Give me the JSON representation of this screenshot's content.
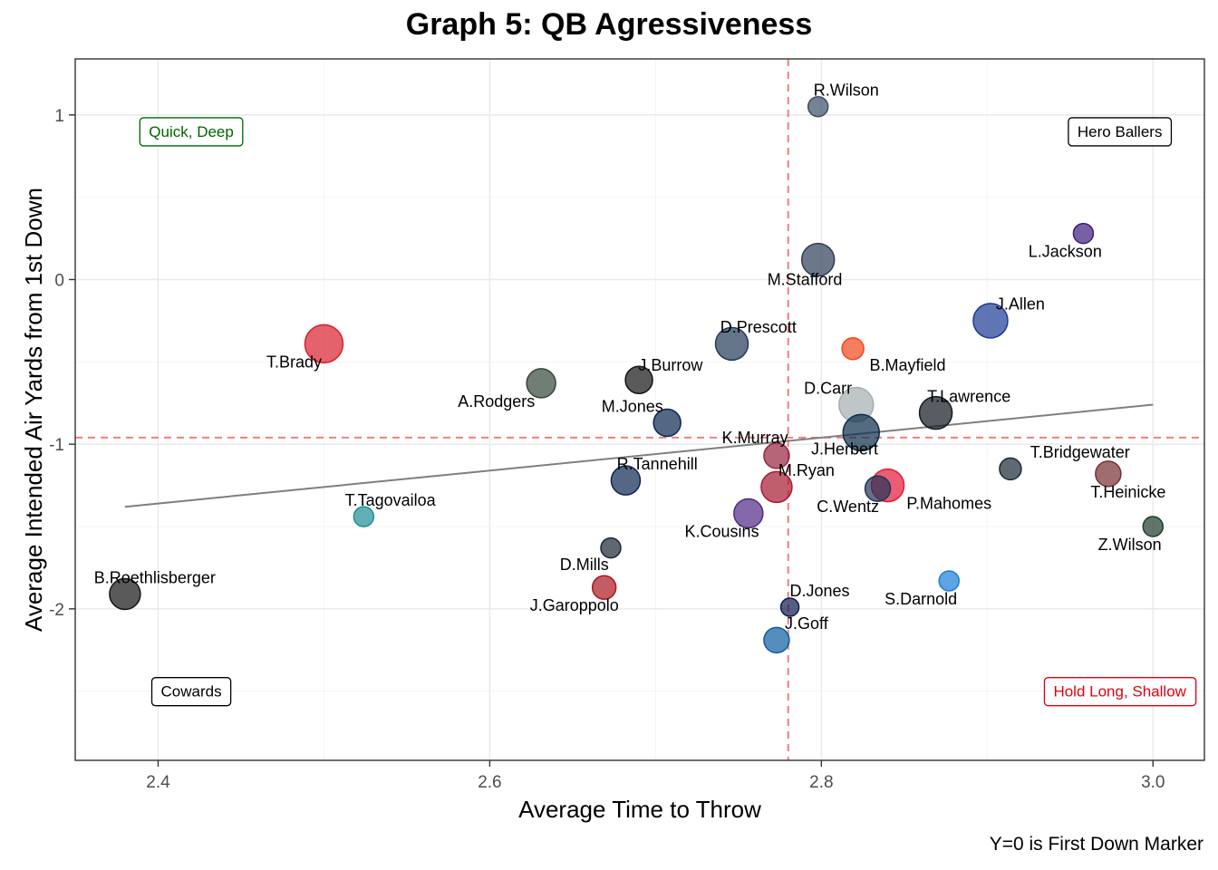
{
  "chart_data": {
    "type": "scatter",
    "title": "Graph 5: QB Agressiveness",
    "xlabel": "Average Time to Throw",
    "ylabel": "Average Intended Air Yards from 1st Down",
    "caption": "Y=0 is First Down Marker",
    "xlim": [
      2.35,
      3.031
    ],
    "ylim": [
      -2.92,
      1.34
    ],
    "x_ticks": [
      2.4,
      2.6,
      2.8,
      3.0
    ],
    "x_tick_labels": [
      "2.4",
      "2.6",
      "2.8",
      "3.0"
    ],
    "y_ticks": [
      1,
      0,
      -1,
      -2
    ],
    "y_tick_labels": [
      "1",
      "0",
      "-1",
      "-2"
    ],
    "grid": true,
    "mean_x": 2.78,
    "mean_y": -0.96,
    "trend_line": {
      "x": [
        2.38,
        3.0
      ],
      "y": [
        -1.38,
        -0.76
      ]
    },
    "quadrant_labels": [
      {
        "text": "Quick, Deep",
        "x": 2.42,
        "y": 0.9,
        "color": "#006400"
      },
      {
        "text": "Hero Ballers",
        "x": 2.98,
        "y": 0.9,
        "color": "#000000"
      },
      {
        "text": "Cowards",
        "x": 2.42,
        "y": -2.5,
        "color": "#000000"
      },
      {
        "text": "Hold Long, Shallow",
        "x": 2.98,
        "y": -2.5,
        "color": "#E3000F"
      }
    ],
    "points": [
      {
        "name": "R.Wilson",
        "x": 2.798,
        "y": 1.05,
        "size": 11,
        "color": "#3C4E67",
        "lx": 2.815,
        "ly": 1.15
      },
      {
        "name": "L.Jackson",
        "x": 2.958,
        "y": 0.28,
        "size": 11,
        "color": "#3D1E7E",
        "lx": 2.947,
        "ly": 0.17
      },
      {
        "name": "M.Stafford",
        "x": 2.798,
        "y": 0.12,
        "size": 18,
        "color": "#2E3F58",
        "lx": 2.79,
        "ly": 0.0
      },
      {
        "name": "J.Allen",
        "x": 2.902,
        "y": -0.25,
        "size": 19,
        "color": "#1D3A93",
        "lx": 2.92,
        "ly": -0.15
      },
      {
        "name": "T.Brady",
        "x": 2.5,
        "y": -0.39,
        "size": 21,
        "color": "#D81F2D",
        "lx": 2.482,
        "ly": -0.5
      },
      {
        "name": "D.Prescott",
        "x": 2.746,
        "y": -0.39,
        "size": 18,
        "color": "#233A57",
        "lx": 2.762,
        "ly": -0.29
      },
      {
        "name": "B.Mayfield",
        "x": 2.819,
        "y": -0.42,
        "size": 12,
        "color": "#F4461C",
        "lx": 2.852,
        "ly": -0.52
      },
      {
        "name": "J.Burrow",
        "x": 2.69,
        "y": -0.61,
        "size": 15,
        "color": "#141414",
        "lx": 2.709,
        "ly": -0.52
      },
      {
        "name": "A.Rodgers",
        "x": 2.631,
        "y": -0.63,
        "size": 16,
        "color": "#354737",
        "lx": 2.604,
        "ly": -0.74
      },
      {
        "name": "D.Carr",
        "x": 2.821,
        "y": -0.76,
        "size": 19,
        "color": "#A5ACB0",
        "lx": 2.804,
        "ly": -0.66
      },
      {
        "name": "T.Lawrence",
        "x": 2.869,
        "y": -0.81,
        "size": 18,
        "color": "#101820",
        "lx": 2.889,
        "ly": -0.71
      },
      {
        "name": "M.Jones",
        "x": 2.707,
        "y": -0.87,
        "size": 15,
        "color": "#0C2650",
        "lx": 2.686,
        "ly": -0.77
      },
      {
        "name": "J.Herbert",
        "x": 2.824,
        "y": -0.93,
        "size": 20,
        "color": "#0D2D4A",
        "lx": 2.814,
        "ly": -1.03
      },
      {
        "name": "K.Murray",
        "x": 2.773,
        "y": -1.07,
        "size": 14,
        "color": "#97233F",
        "lx": 2.76,
        "ly": -0.96
      },
      {
        "name": "T.Bridgewater",
        "x": 2.914,
        "y": -1.15,
        "size": 12,
        "color": "#1B2A36",
        "lx": 2.956,
        "ly": -1.05
      },
      {
        "name": "T.Heinicke",
        "x": 2.973,
        "y": -1.18,
        "size": 14,
        "color": "#772F32",
        "lx": 2.985,
        "ly": -1.29
      },
      {
        "name": "R.Tannehill",
        "x": 2.682,
        "y": -1.22,
        "size": 16,
        "color": "#0C2650",
        "lx": 2.701,
        "ly": -1.12
      },
      {
        "name": "M.Ryan",
        "x": 2.773,
        "y": -1.26,
        "size": 17,
        "color": "#A71930",
        "lx": 2.791,
        "ly": -1.16
      },
      {
        "name": "P.Mahomes",
        "x": 2.84,
        "y": -1.25,
        "size": 18,
        "color": "#E31837",
        "lx": 2.877,
        "ly": -1.36
      },
      {
        "name": "C.Wentz",
        "x": 2.834,
        "y": -1.27,
        "size": 14,
        "color": "#213458",
        "lx": 2.816,
        "ly": -1.38
      },
      {
        "name": "K.Cousins",
        "x": 2.756,
        "y": -1.42,
        "size": 16,
        "color": "#4E2A84",
        "lx": 2.74,
        "ly": -1.53
      },
      {
        "name": "T.Tagovailoa",
        "x": 2.524,
        "y": -1.44,
        "size": 11,
        "color": "#1D8F97",
        "lx": 2.54,
        "ly": -1.34
      },
      {
        "name": "Z.Wilson",
        "x": 3.0,
        "y": -1.5,
        "size": 11,
        "color": "#1E3C2B",
        "lx": 2.986,
        "ly": -1.61
      },
      {
        "name": "D.Mills",
        "x": 2.673,
        "y": -1.63,
        "size": 11,
        "color": "#1B2733",
        "lx": 2.657,
        "ly": -1.73
      },
      {
        "name": "S.Darnold",
        "x": 2.877,
        "y": -1.83,
        "size": 11,
        "color": "#1A7ED8",
        "lx": 2.86,
        "ly": -1.94
      },
      {
        "name": "J.Garoppolo",
        "x": 2.669,
        "y": -1.87,
        "size": 13,
        "color": "#AA1820",
        "lx": 2.651,
        "ly": -1.98
      },
      {
        "name": "D.Jones",
        "x": 2.781,
        "y": -1.99,
        "size": 10,
        "color": "#101A50",
        "lx": 2.799,
        "ly": -1.89
      },
      {
        "name": "B.Roethlisberger",
        "x": 2.38,
        "y": -1.91,
        "size": 17,
        "color": "#141414",
        "lx": 2.398,
        "ly": -1.81
      },
      {
        "name": "J.Goff",
        "x": 2.773,
        "y": -2.19,
        "size": 14,
        "color": "#0D5DA0",
        "lx": 2.791,
        "ly": -2.09
      }
    ]
  }
}
